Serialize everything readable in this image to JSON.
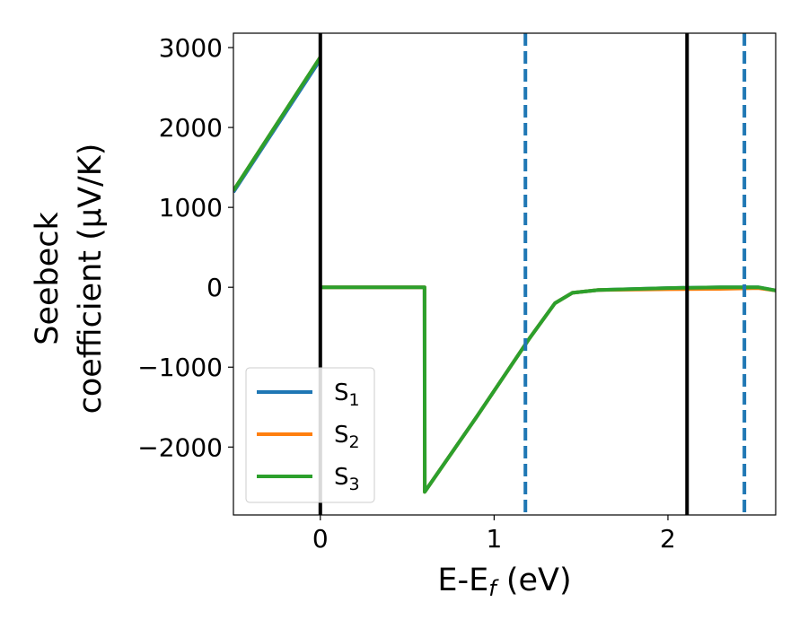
{
  "chart_data": {
    "type": "line",
    "title": "",
    "xlabel": "E-E",
    "xlabel_sub": "f",
    "xlabel_unit": " (eV)",
    "ylabel_line1": "Seebeck",
    "ylabel_line2": "coefficient  (μV/K)",
    "xlim": [
      -0.5,
      2.62
    ],
    "ylim": [
      -2850,
      3180
    ],
    "xticks": [
      0,
      1,
      2
    ],
    "xtick_labels": [
      "0",
      "1",
      "2"
    ],
    "yticks": [
      -2000,
      -1000,
      0,
      1000,
      2000,
      3000
    ],
    "ytick_labels": [
      "−2000",
      "−1000",
      "0",
      "1000",
      "2000",
      "3000"
    ],
    "grid": false,
    "legend_position": "lower-left",
    "vlines": [
      {
        "x": 0.0,
        "style": "solid",
        "color": "#000000"
      },
      {
        "x": 2.11,
        "style": "solid",
        "color": "#000000"
      },
      {
        "x": 1.18,
        "style": "dashed",
        "color": "#1f77b4"
      },
      {
        "x": 2.44,
        "style": "dashed",
        "color": "#1f77b4"
      }
    ],
    "series": [
      {
        "name": "S",
        "sub": "1",
        "color": "#1f77b4",
        "segments": [
          {
            "x": [
              -0.5,
              0.0
            ],
            "y": [
              1190,
              2850
            ]
          },
          {
            "x": [
              0.0,
              0.6,
              0.601,
              0.9,
              1.2,
              1.35,
              1.45,
              1.6,
              2.0,
              2.3,
              2.52,
              2.62
            ],
            "y": [
              0,
              0,
              -2560,
              -1620,
              -650,
              -200,
              -70,
              -35,
              -10,
              0,
              0,
              -40
            ]
          }
        ]
      },
      {
        "name": "S",
        "sub": "2",
        "color": "#ff7f0e",
        "segments": [
          {
            "x": [
              -0.5,
              0.0
            ],
            "y": [
              1210,
              2880
            ]
          },
          {
            "x": [
              0.0,
              0.6,
              0.601,
              0.9,
              1.2,
              1.35,
              1.45,
              1.6,
              2.0,
              2.3,
              2.52,
              2.62
            ],
            "y": [
              0,
              0,
              -2560,
              -1620,
              -650,
              -200,
              -70,
              -35,
              -25,
              -20,
              -10,
              -40
            ]
          }
        ]
      },
      {
        "name": "S",
        "sub": "3",
        "color": "#2ca02c",
        "segments": [
          {
            "x": [
              -0.5,
              0.0
            ],
            "y": [
              1210,
              2880
            ]
          },
          {
            "x": [
              0.0,
              0.6,
              0.601,
              0.9,
              1.2,
              1.35,
              1.45,
              1.6,
              2.0,
              2.3,
              2.52,
              2.62
            ],
            "y": [
              0,
              0,
              -2560,
              -1620,
              -650,
              -200,
              -70,
              -35,
              -10,
              0,
              0,
              -40
            ]
          }
        ]
      }
    ]
  }
}
